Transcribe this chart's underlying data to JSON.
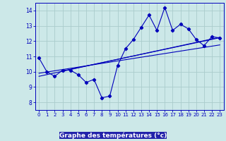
{
  "xlabel": "Graphe des températures (°c)",
  "background_color": "#cce8e8",
  "grid_color": "#aacccc",
  "line_color": "#0000bb",
  "xlabel_bg": "#2222aa",
  "xlabel_fg": "#ffffff",
  "ylim": [
    7.5,
    14.5
  ],
  "xlim": [
    -0.5,
    23.5
  ],
  "yticks": [
    8,
    9,
    10,
    11,
    12,
    13,
    14
  ],
  "xticks": [
    0,
    1,
    2,
    3,
    4,
    5,
    6,
    7,
    8,
    9,
    10,
    11,
    12,
    13,
    14,
    15,
    16,
    17,
    18,
    19,
    20,
    21,
    22,
    23
  ],
  "series": [
    10.9,
    10.0,
    9.7,
    10.1,
    10.1,
    9.8,
    9.3,
    9.5,
    8.3,
    8.4,
    10.4,
    11.5,
    12.1,
    12.9,
    13.7,
    12.7,
    14.2,
    12.7,
    13.1,
    12.8,
    12.1,
    11.7,
    12.3,
    12.2
  ],
  "regression_lines": [
    {
      "x0": 0,
      "y0": 9.9,
      "x1": 23,
      "y1": 11.75
    },
    {
      "x0": 0,
      "y0": 9.7,
      "x1": 23,
      "y1": 12.25
    },
    {
      "x0": 3,
      "y0": 10.05,
      "x1": 23,
      "y1": 12.22
    }
  ]
}
